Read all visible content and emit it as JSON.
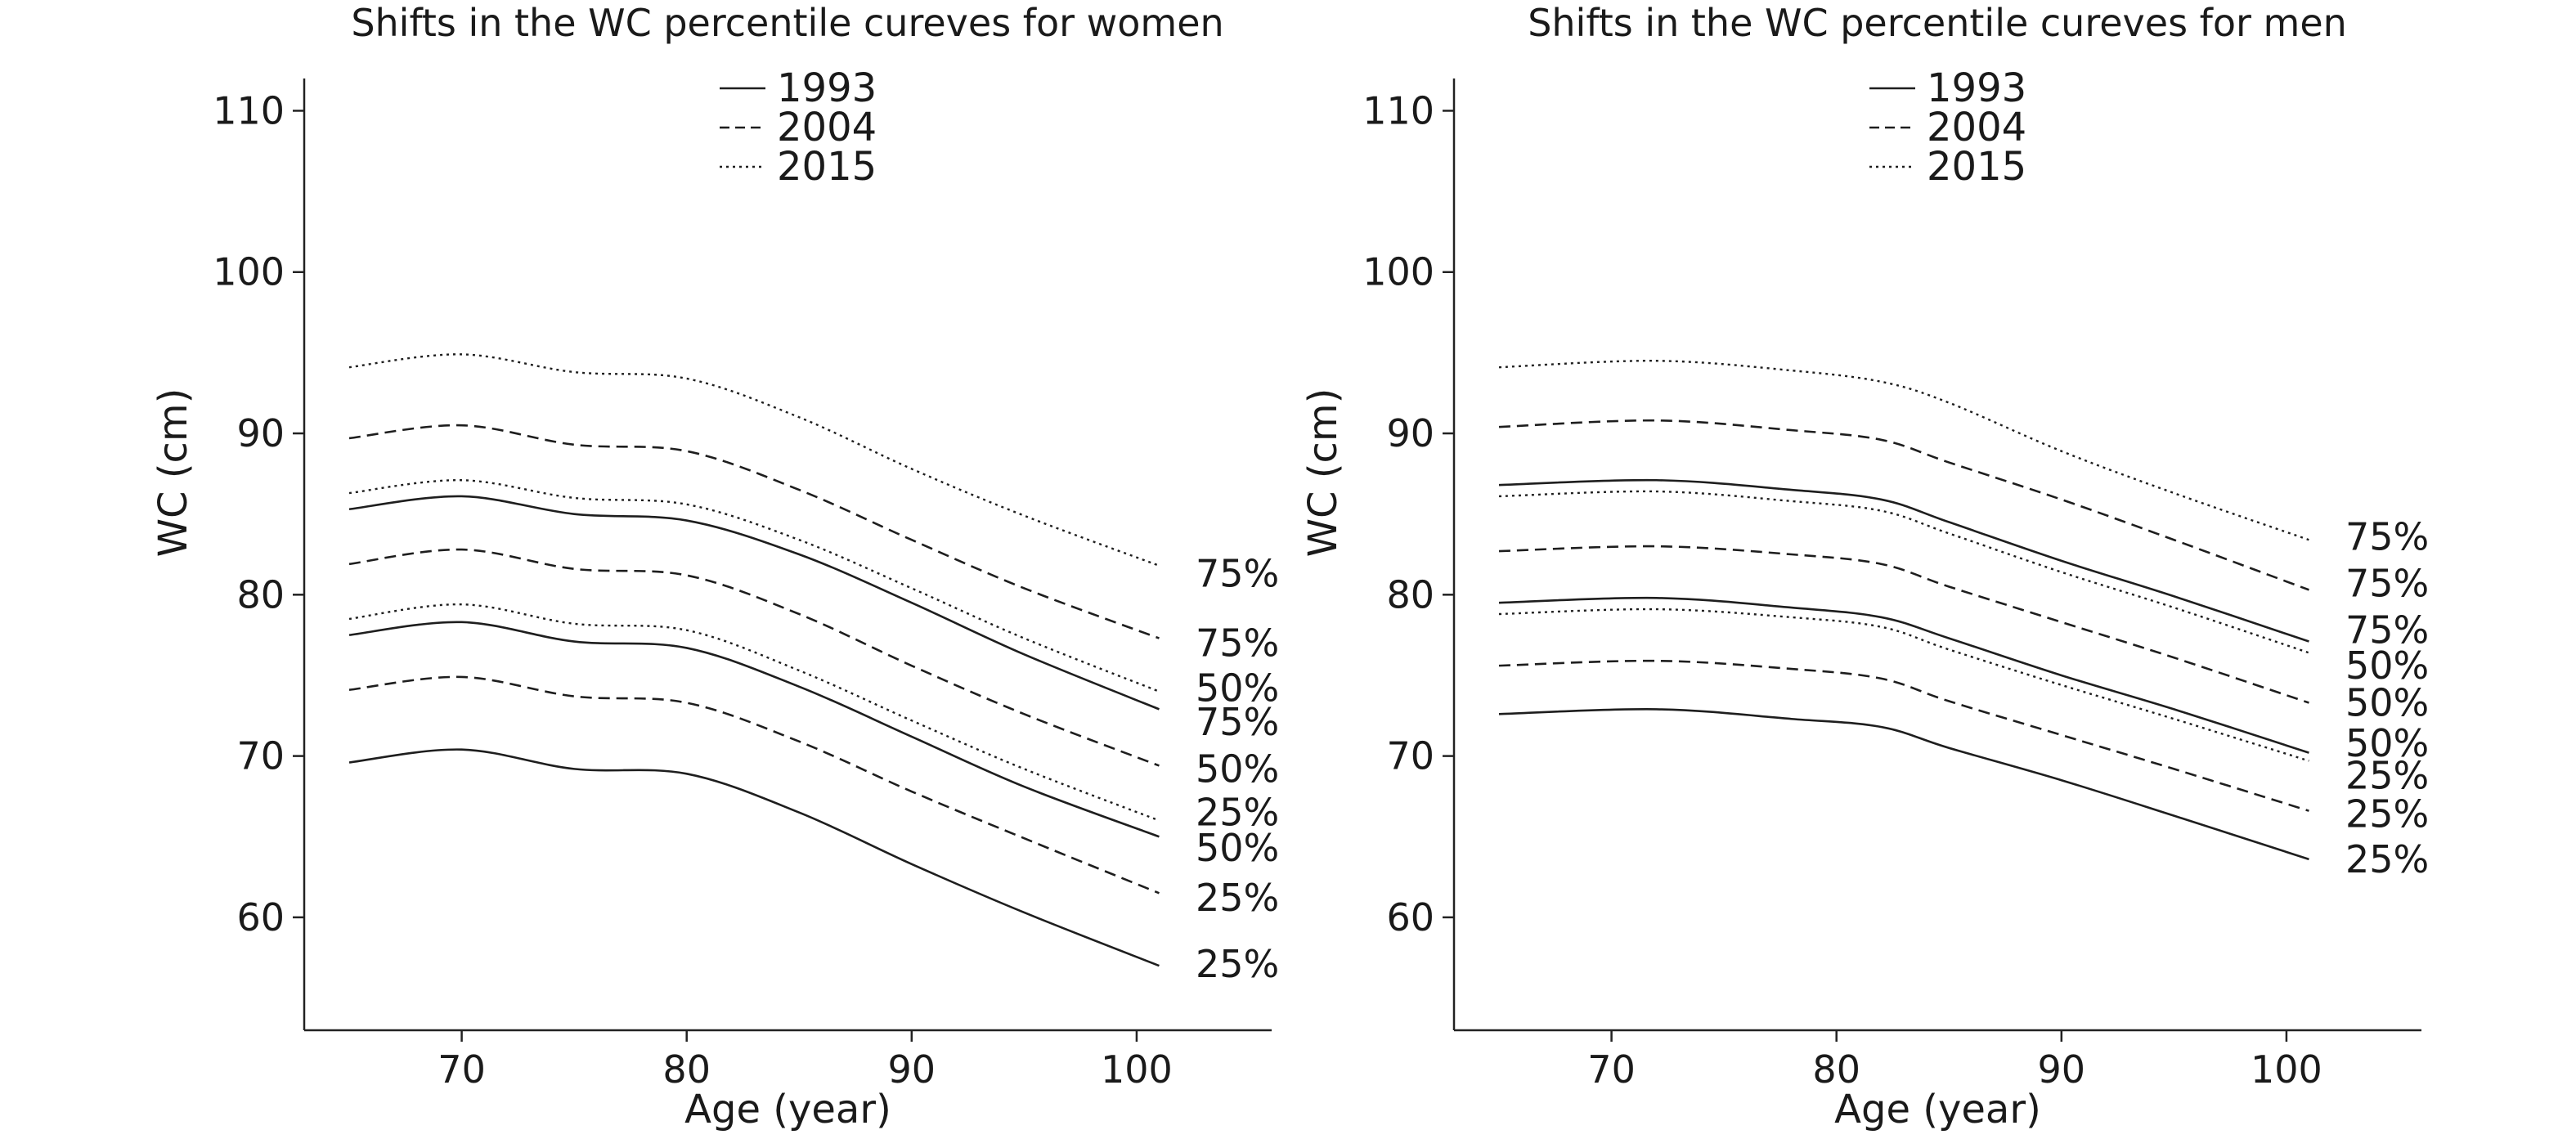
{
  "chart_data": [
    {
      "type": "line",
      "title": "Shifts in the WC percentile cureves for women",
      "xlabel": "Age (year)",
      "ylabel": "WC (cm)",
      "xlim": [
        63,
        106
      ],
      "ylim": [
        53,
        112
      ],
      "xticks": [
        "70",
        "80",
        "90",
        "100"
      ],
      "yticks": [
        "60",
        "70",
        "80",
        "90",
        "100",
        "110"
      ],
      "grid": false,
      "legend": {
        "position": "top-center",
        "entries": [
          {
            "label": "1993",
            "style": "solid"
          },
          {
            "label": "2004",
            "style": "dashed"
          },
          {
            "label": "2015",
            "style": "dotted"
          }
        ]
      },
      "x": [
        65,
        70,
        75,
        80,
        85,
        90,
        95,
        101
      ],
      "series": [
        {
          "year": "1993",
          "style": "solid",
          "end_label": "25%",
          "values": [
            69.6,
            70.4,
            69.2,
            68.9,
            66.5,
            63.3,
            60.3,
            57.0
          ]
        },
        {
          "year": "1993",
          "style": "solid",
          "end_label": "50%",
          "values": [
            77.5,
            78.3,
            77.1,
            76.7,
            74.3,
            71.2,
            68.1,
            65.0
          ]
        },
        {
          "year": "1993",
          "style": "solid",
          "end_label": "75%",
          "values": [
            85.3,
            86.1,
            85.0,
            84.6,
            82.5,
            79.5,
            76.3,
            72.9
          ]
        },
        {
          "year": "2004",
          "style": "dashed",
          "end_label": "25%",
          "values": [
            74.1,
            74.9,
            73.7,
            73.3,
            70.9,
            67.8,
            64.9,
            61.5
          ]
        },
        {
          "year": "2004",
          "style": "dashed",
          "end_label": "50%",
          "values": [
            81.9,
            82.8,
            81.6,
            81.2,
            78.8,
            75.6,
            72.6,
            69.4
          ]
        },
        {
          "year": "2004",
          "style": "dashed",
          "end_label": "75%",
          "values": [
            89.7,
            90.5,
            89.3,
            88.9,
            86.5,
            83.4,
            80.4,
            77.3
          ]
        },
        {
          "year": "2015",
          "style": "dotted",
          "end_label": "25%",
          "values": [
            78.5,
            79.4,
            78.2,
            77.8,
            75.3,
            72.2,
            69.2,
            66.0
          ]
        },
        {
          "year": "2015",
          "style": "dotted",
          "end_label": "50%",
          "values": [
            86.3,
            87.1,
            86.0,
            85.6,
            83.4,
            80.4,
            77.3,
            74.0
          ]
        },
        {
          "year": "2015",
          "style": "dotted",
          "end_label": "75%",
          "values": [
            94.1,
            94.9,
            93.8,
            93.4,
            91.0,
            87.8,
            84.9,
            81.8
          ]
        }
      ],
      "end_label_values": [
        {
          "text": "75%",
          "y": 81.3
        },
        {
          "text": "75%",
          "y": 77.0
        },
        {
          "text": "50%",
          "y": 74.2
        },
        {
          "text": "75%",
          "y": 72.1
        },
        {
          "text": "50%",
          "y": 69.2
        },
        {
          "text": "25%",
          "y": 66.5
        },
        {
          "text": "50%",
          "y": 64.3
        },
        {
          "text": "25%",
          "y": 61.2
        },
        {
          "text": "25%",
          "y": 57.1
        }
      ]
    },
    {
      "type": "line",
      "title": "Shifts in the WC percentile cureves for men",
      "xlabel": "Age (year)",
      "ylabel": "WC (cm)",
      "xlim": [
        63,
        106
      ],
      "ylim": [
        53,
        112
      ],
      "xticks": [
        "70",
        "80",
        "90",
        "100"
      ],
      "yticks": [
        "60",
        "70",
        "80",
        "90",
        "100",
        "110"
      ],
      "grid": false,
      "legend": {
        "position": "top-center",
        "entries": [
          {
            "label": "1993",
            "style": "solid"
          },
          {
            "label": "2004",
            "style": "dashed"
          },
          {
            "label": "2015",
            "style": "dotted"
          }
        ]
      },
      "x": [
        65,
        72,
        78,
        82,
        85,
        90,
        95,
        101
      ],
      "series": [
        {
          "year": "1993",
          "style": "solid",
          "end_label": "25%",
          "values": [
            72.6,
            72.9,
            72.3,
            71.8,
            70.5,
            68.5,
            66.3,
            63.6
          ]
        },
        {
          "year": "1993",
          "style": "solid",
          "end_label": "50%",
          "values": [
            79.5,
            79.8,
            79.2,
            78.6,
            77.3,
            75.0,
            72.9,
            70.2
          ]
        },
        {
          "year": "1993",
          "style": "solid",
          "end_label": "75%",
          "values": [
            86.8,
            87.1,
            86.5,
            85.9,
            84.5,
            82.1,
            79.9,
            77.1
          ]
        },
        {
          "year": "2004",
          "style": "dashed",
          "end_label": "25%",
          "values": [
            75.6,
            75.9,
            75.4,
            74.8,
            73.4,
            71.3,
            69.2,
            66.6
          ]
        },
        {
          "year": "2004",
          "style": "dashed",
          "end_label": "50%",
          "values": [
            82.7,
            83.0,
            82.5,
            81.9,
            80.5,
            78.3,
            76.1,
            73.3
          ]
        },
        {
          "year": "2004",
          "style": "dashed",
          "end_label": "75%",
          "values": [
            90.4,
            90.8,
            90.2,
            89.6,
            88.2,
            85.9,
            83.4,
            80.3
          ]
        },
        {
          "year": "2015",
          "style": "dotted",
          "end_label": "25%",
          "values": [
            78.8,
            79.1,
            78.6,
            78.0,
            76.6,
            74.4,
            72.3,
            69.7
          ]
        },
        {
          "year": "2015",
          "style": "dotted",
          "end_label": "50%",
          "values": [
            86.1,
            86.4,
            85.8,
            85.2,
            83.8,
            81.4,
            79.2,
            76.4
          ]
        },
        {
          "year": "2015",
          "style": "dotted",
          "end_label": "75%",
          "values": [
            94.1,
            94.5,
            93.9,
            93.2,
            91.9,
            88.9,
            86.3,
            83.4
          ]
        }
      ],
      "end_label_values": [
        {
          "text": "75%",
          "y": 83.6
        },
        {
          "text": "75%",
          "y": 80.7
        },
        {
          "text": "75%",
          "y": 77.8
        },
        {
          "text": "50%",
          "y": 75.6
        },
        {
          "text": "50%",
          "y": 73.3
        },
        {
          "text": "50%",
          "y": 70.8
        },
        {
          "text": "25%",
          "y": 68.8
        },
        {
          "text": "25%",
          "y": 66.4
        },
        {
          "text": "25%",
          "y": 63.6
        }
      ]
    }
  ]
}
